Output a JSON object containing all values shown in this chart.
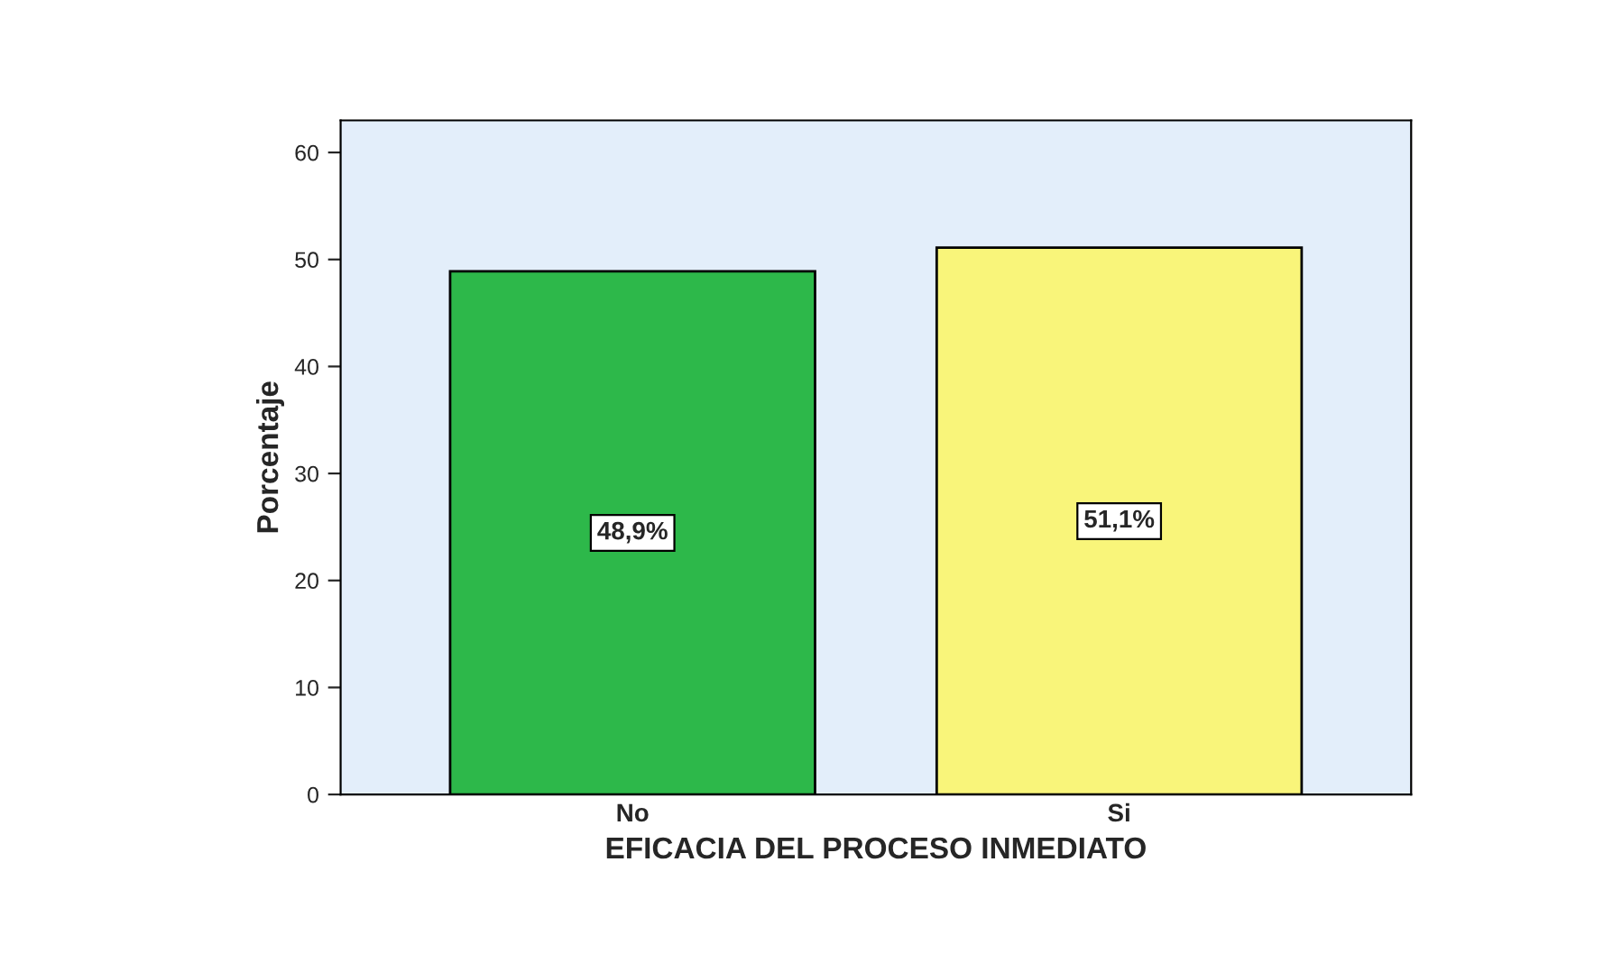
{
  "chart_data": {
    "type": "bar",
    "categories": [
      "No",
      "Si"
    ],
    "values": [
      48.9,
      51.1
    ],
    "colors": [
      "#2db84a",
      "#f9f57a"
    ],
    "value_labels": [
      "48,9%",
      "51,1%"
    ],
    "xlabel": "EFICACIA DEL PROCESO INMEDIATO",
    "ylabel": "Porcentaje",
    "ylim": [
      0,
      63
    ],
    "yticks": [
      0,
      10,
      20,
      30,
      40,
      50,
      60
    ],
    "grid": false,
    "legend": false
  }
}
